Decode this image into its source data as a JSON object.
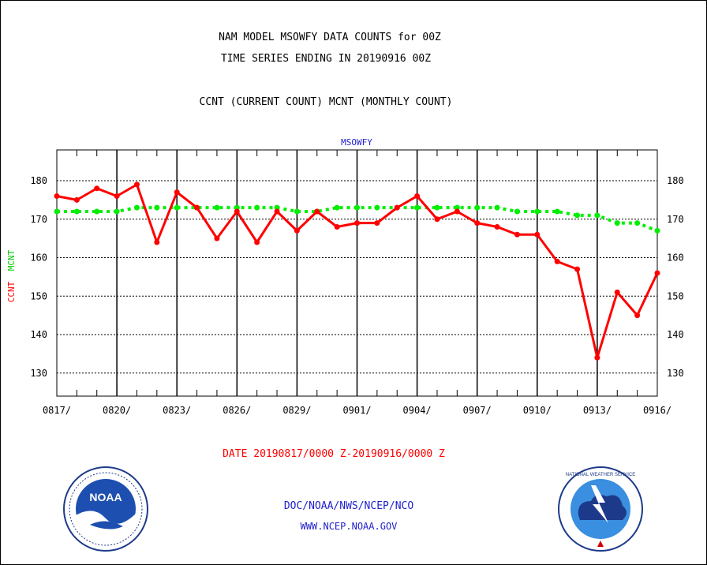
{
  "header": {
    "line1": "NAM MODEL MSOWFY DATA COUNTS for 00Z",
    "line2": "TIME SERIES ENDING IN 20190916 00Z",
    "line3": "CCNT (CURRENT COUNT) MCNT (MONTHLY COUNT)"
  },
  "footer": {
    "org": "DOC/NOAA/NWS/NCEP/NCO",
    "url": "WWW.NCEP.NOAA.GOV",
    "noaa_logo_text": "NOAA",
    "nws_logo_text": "NATIONAL WEATHER SERVICE"
  },
  "chart_data": {
    "type": "line",
    "title": "MSOWFY",
    "xlabel": "DATE 20190817/0000 Z-20190916/0000 Z",
    "ylabel_series1": "CCNT",
    "ylabel_series2": "MCNT",
    "ylim": [
      124,
      188
    ],
    "yticks": [
      130,
      140,
      150,
      160,
      170,
      180
    ],
    "xlim": [
      "2019-08-17",
      "2019-09-16"
    ],
    "xtick_labels": [
      "0817/",
      "0820/",
      "0823/",
      "0826/",
      "0829/",
      "0901/",
      "0904/",
      "0907/",
      "0910/",
      "0913/",
      "0916/"
    ],
    "grid": true,
    "x": [
      "2019-08-17",
      "2019-08-18",
      "2019-08-19",
      "2019-08-20",
      "2019-08-21",
      "2019-08-22",
      "2019-08-23",
      "2019-08-24",
      "2019-08-25",
      "2019-08-26",
      "2019-08-27",
      "2019-08-28",
      "2019-08-29",
      "2019-08-30",
      "2019-08-31",
      "2019-09-01",
      "2019-09-02",
      "2019-09-03",
      "2019-09-04",
      "2019-09-05",
      "2019-09-06",
      "2019-09-07",
      "2019-09-08",
      "2019-09-09",
      "2019-09-10",
      "2019-09-11",
      "2019-09-12",
      "2019-09-13",
      "2019-09-14",
      "2019-09-15",
      "2019-09-16"
    ],
    "series": [
      {
        "name": "CCNT",
        "color": "#ff0000",
        "values": [
          176,
          175,
          178,
          176,
          179,
          164,
          177,
          173,
          165,
          172,
          164,
          172,
          167,
          172,
          168,
          169,
          169,
          173,
          176,
          170,
          172,
          169,
          168,
          166,
          166,
          159,
          157,
          134,
          151,
          145,
          156
        ]
      },
      {
        "name": "MCNT",
        "color": "#00ee00",
        "values": [
          172,
          172,
          172,
          172,
          173,
          173,
          173,
          173,
          173,
          173,
          173,
          173,
          172,
          172,
          173,
          173,
          173,
          173,
          173,
          173,
          173,
          173,
          173,
          172,
          172,
          172,
          171,
          171,
          169,
          169,
          167
        ]
      }
    ]
  }
}
